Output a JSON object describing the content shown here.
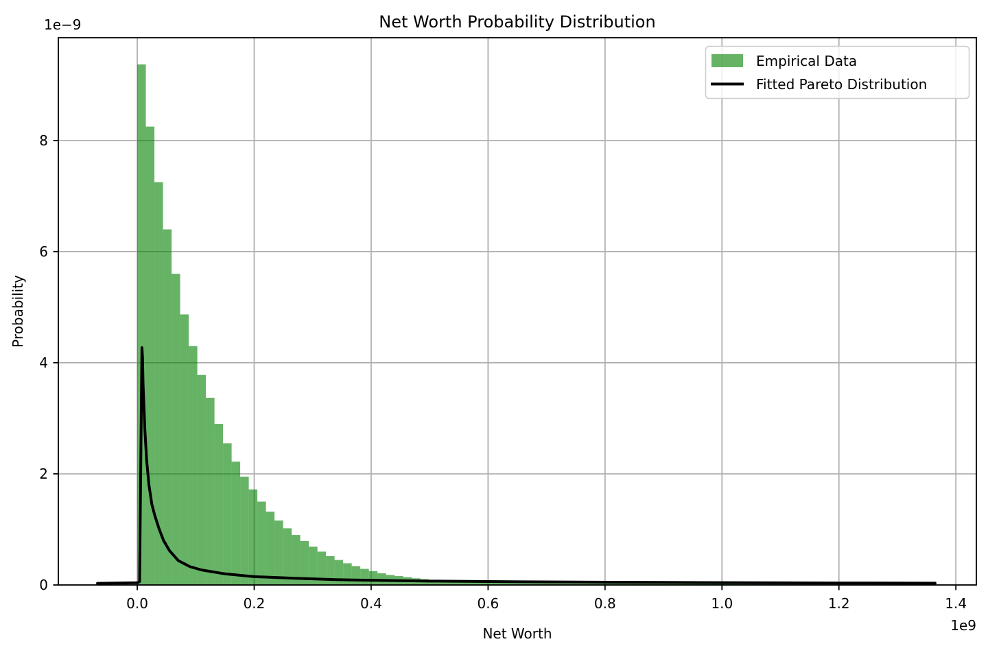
{
  "figure": {
    "title": "Net Worth Probability Distribution",
    "background_color": "#ffffff"
  },
  "axes": {
    "xlabel": "Net Worth",
    "ylabel": "Probability",
    "x_offset_text": "1e9",
    "y_offset_text": "1e−9",
    "xlim": [
      -0.135,
      1.435
    ],
    "ylim": [
      0,
      9.85
    ],
    "xtick_values": [
      0.0,
      0.2,
      0.4,
      0.6,
      0.8,
      1.0,
      1.2,
      1.4
    ],
    "xtick_labels": [
      "0.0",
      "0.2",
      "0.4",
      "0.6",
      "0.8",
      "1.0",
      "1.2",
      "1.4"
    ],
    "ytick_values": [
      0,
      2,
      4,
      6,
      8
    ],
    "ytick_labels": [
      "0",
      "2",
      "4",
      "6",
      "8"
    ],
    "grid": true,
    "grid_color": "#b0b0b0",
    "spine_color": "#000000",
    "tick_color": "#000000"
  },
  "legend": {
    "location": "upper right",
    "frame_color": "#cccccc",
    "entries": [
      {
        "label": "Empirical Data",
        "marker": "patch",
        "color": "#66b366"
      },
      {
        "label": "Fitted Pareto Distribution",
        "marker": "line",
        "color": "#000000"
      }
    ]
  },
  "chart_data": {
    "type": "bar",
    "subtype": "histogram_with_fitted_line",
    "title": "Net Worth Probability Distribution",
    "xlabel": "Net Worth",
    "ylabel": "Probability",
    "x_unit_multiplier": 1000000000.0,
    "y_unit_multiplier": 1e-09,
    "xlim": [
      -0.135,
      1.435
    ],
    "ylim": [
      0,
      9.85
    ],
    "grid": true,
    "legend_position": "upper right",
    "series": [
      {
        "name": "Empirical Data",
        "type": "histogram",
        "fill_color": "#008000",
        "fill_opacity": 0.6,
        "bin_start": 0.0,
        "bin_width": 0.014672,
        "heights": [
          9.37,
          8.25,
          7.25,
          6.4,
          5.6,
          4.87,
          4.3,
          3.78,
          3.37,
          2.9,
          2.55,
          2.22,
          1.95,
          1.72,
          1.5,
          1.32,
          1.16,
          1.02,
          0.9,
          0.79,
          0.69,
          0.6,
          0.52,
          0.45,
          0.39,
          0.34,
          0.29,
          0.25,
          0.21,
          0.18,
          0.16,
          0.14,
          0.12,
          0.105,
          0.092,
          0.081,
          0.072,
          0.065,
          0.059,
          0.054,
          0.05,
          0.047,
          0.044,
          0.041,
          0.038,
          0.036,
          0.034,
          0.032,
          0.03,
          0.029,
          0.028,
          0.027,
          0.026,
          0.025,
          0.025,
          0.024,
          0.024,
          0.023,
          0.023,
          0.022,
          0.022,
          0.021,
          0.021,
          0.02,
          0.02,
          0.02,
          0.019,
          0.019,
          0.019,
          0.018,
          0.018,
          0.018,
          0.017,
          0.017,
          0.017,
          0.016,
          0.016,
          0.016,
          0.015,
          0.015,
          0.015,
          0.015,
          0.014,
          0.014,
          0.014,
          0.013,
          0.013,
          0.013,
          0.013,
          0.012,
          0.012,
          0.012,
          0.012
        ]
      },
      {
        "name": "Fitted Pareto Distribution",
        "type": "line",
        "stroke_color": "#000000",
        "stroke_width": 4,
        "points": [
          [
            -0.068,
            0.03
          ],
          [
            0.0,
            0.04
          ],
          [
            0.004,
            0.06
          ],
          [
            0.008,
            4.27
          ],
          [
            0.009,
            4.1
          ],
          [
            0.01,
            3.6
          ],
          [
            0.013,
            2.8
          ],
          [
            0.016,
            2.25
          ],
          [
            0.02,
            1.8
          ],
          [
            0.025,
            1.45
          ],
          [
            0.03,
            1.25
          ],
          [
            0.037,
            1.02
          ],
          [
            0.045,
            0.8
          ],
          [
            0.055,
            0.62
          ],
          [
            0.07,
            0.44
          ],
          [
            0.09,
            0.33
          ],
          [
            0.11,
            0.27
          ],
          [
            0.15,
            0.2
          ],
          [
            0.2,
            0.15
          ],
          [
            0.27,
            0.12
          ],
          [
            0.34,
            0.095
          ],
          [
            0.4,
            0.085
          ],
          [
            0.5,
            0.07
          ],
          [
            0.62,
            0.06
          ],
          [
            0.75,
            0.052
          ],
          [
            0.9,
            0.046
          ],
          [
            1.05,
            0.04
          ],
          [
            1.2,
            0.036
          ],
          [
            1.3645,
            0.033
          ]
        ]
      }
    ]
  }
}
